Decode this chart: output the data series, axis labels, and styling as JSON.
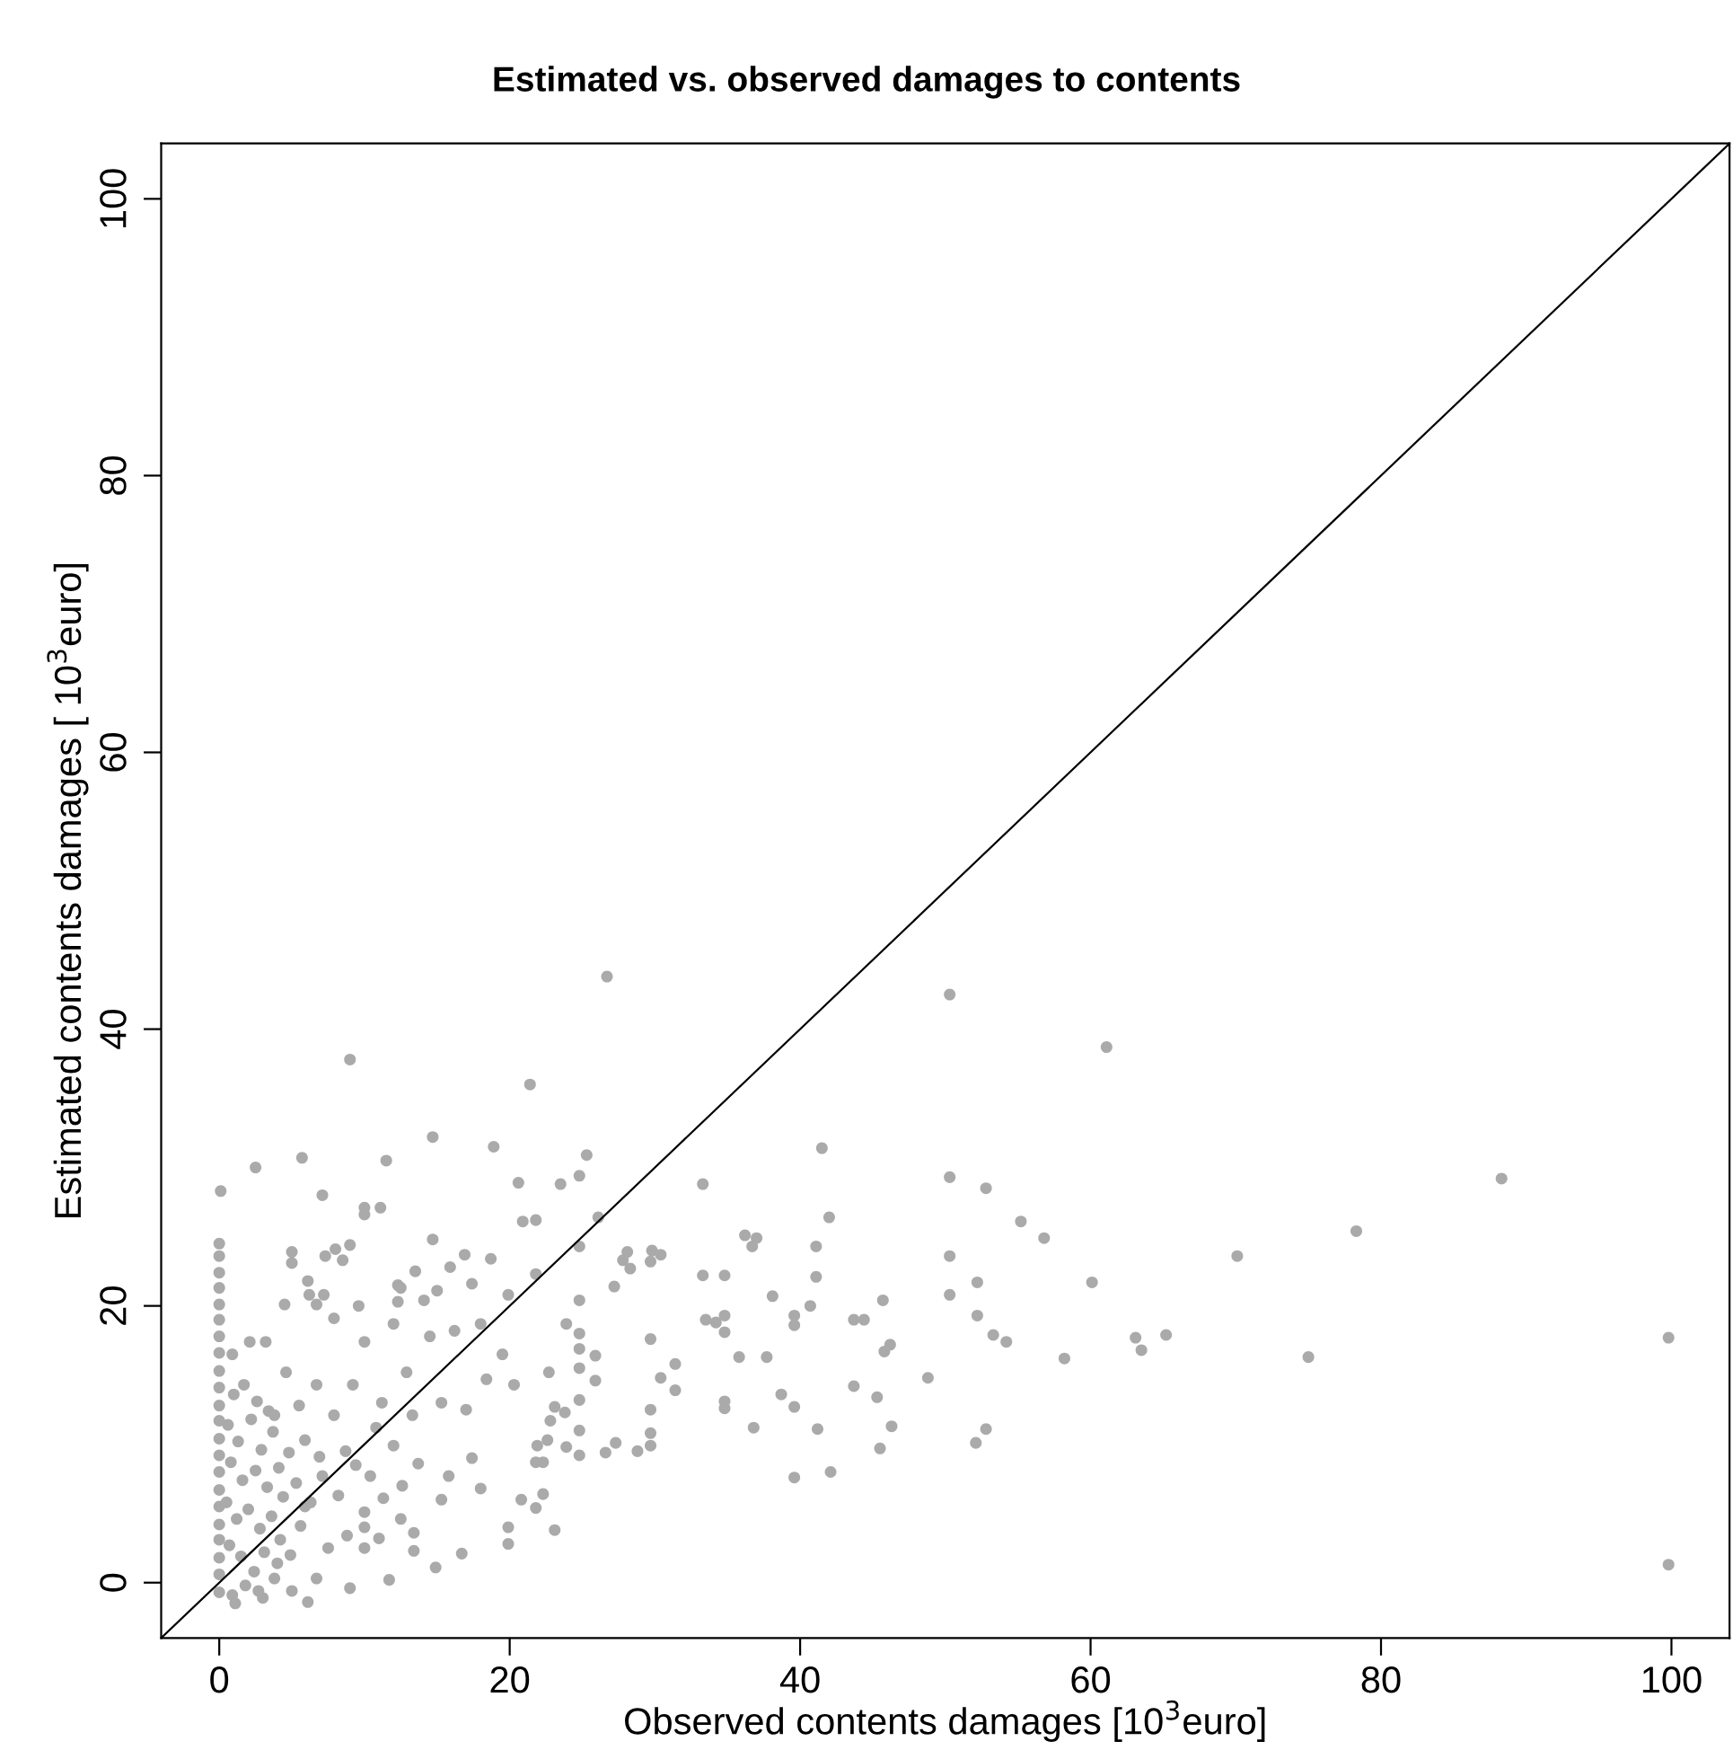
{
  "chart_data": {
    "type": "scatter",
    "title": "Estimated vs. observed damages to contents",
    "xlabel": "Observed contents damages [10$^{3}$euro]",
    "ylabel": "Estimated contents damages [ 10$^{3}$euro]",
    "xlim": [
      -4,
      104
    ],
    "ylim": [
      -4,
      104
    ],
    "xticks": [
      0,
      20,
      40,
      60,
      80,
      100
    ],
    "yticks": [
      0,
      20,
      40,
      60,
      80,
      100
    ],
    "grid": false,
    "marker": "circle",
    "series": [
      {
        "color": "#aaaaaa",
        "x": [
          26.7,
          9.0,
          21.4,
          0.1,
          2.5,
          5.7,
          7.1,
          11.5,
          14.7,
          18.9,
          20.6,
          25.3,
          24.8,
          23.5,
          41.5,
          42.0,
          33.3,
          10.0,
          10.0,
          11.1,
          20.9,
          21.8,
          26.1,
          14.7,
          5.0,
          5.0,
          8.0,
          9.0,
          7.3,
          8.5,
          6.1,
          6.2,
          7.2,
          6.7,
          4.5,
          13.5,
          15.9,
          16.9,
          18.7,
          17.4,
          19.9,
          21.8,
          24.8,
          12.3,
          12.5,
          15.0,
          14.1,
          12.3,
          28.1,
          27.8,
          28.3,
          29.8,
          30.4,
          29.7,
          27.2,
          33.3,
          34.8,
          36.2,
          37.0,
          36.7,
          41.1,
          41.1,
          38.1,
          40.7,
          39.6,
          39.6,
          43.7,
          34.8,
          34.8,
          33.5,
          34.2,
          35.8,
          37.7,
          38.7,
          39.6,
          34.8,
          34.8,
          36.8,
          41.2,
          39.6,
          42.1,
          43.7,
          24.8,
          24.8,
          24.8,
          24.8,
          24.8,
          24.8,
          24.8,
          29.7,
          29.7,
          29.7,
          29.7,
          30.4,
          31.4,
          31.4,
          28.8,
          27.3,
          26.6,
          23.9,
          25.9,
          25.9,
          22.7,
          23.1,
          22.8,
          23.8,
          23.9,
          22.6,
          21.9,
          21.8,
          22.3,
          23.1,
          19.9,
          19.9,
          20.8,
          21.8,
          22.3,
          16.7,
          14.9,
          11.7,
          9.0,
          6.1,
          13.4,
          13.4,
          12.5,
          11.0,
          10.0,
          10.0,
          10.0,
          7.9,
          10.0,
          12.0,
          14.5,
          16.2,
          18.0,
          19.5,
          20.3,
          18.4,
          17.0,
          15.3,
          13.3,
          12.0,
          13.7,
          15.8,
          17.4,
          18.0,
          15.3,
          10.4,
          8.7,
          7.9,
          6.7,
          4.6,
          3.8,
          5.9,
          7.1,
          5.9,
          7.5,
          6.7,
          5.0,
          3.8,
          3.0,
          1.1,
          2.1,
          0.9,
          3.2,
          1.7,
          9.6,
          9.2,
          11.2,
          12.9,
          10.8,
          50.3,
          61.1,
          50.3,
          52.8,
          55.2,
          56.8,
          50.3,
          50.3,
          52.2,
          52.2,
          53.3,
          54.2,
          60.1,
          58.2,
          63.1,
          63.5,
          65.2,
          70.1,
          75.0,
          78.3,
          88.3,
          99.8,
          99.8,
          45.7,
          46.2,
          45.8,
          48.8,
          45.3,
          46.3,
          45.5,
          52.1,
          52.8,
          44.4,
          0,
          0,
          0,
          0,
          0,
          0,
          0,
          0,
          0,
          0,
          0,
          0,
          0,
          0,
          0,
          0,
          0,
          0,
          0,
          0,
          0,
          0,
          0.6,
          1.3,
          2.2,
          2.9,
          3.7,
          4.1,
          0.8,
          1.6,
          2.5,
          3.3,
          4.4,
          0.5,
          1.2,
          2.0,
          2.8,
          3.6,
          4.2,
          0.7,
          1.5,
          2.4,
          3.1,
          0.9,
          1.8,
          2.7,
          4.0,
          1.0,
          2.6,
          3.4,
          4.8,
          5.3,
          5.6,
          4.9,
          5.5,
          6.3,
          6.9,
          8.2,
          8.8,
          9.4,
          11.3,
          12.6
        ],
        "values": [
          43.8,
          37.8,
          36.0,
          28.3,
          30.0,
          30.7,
          28.0,
          30.5,
          32.2,
          31.5,
          28.9,
          30.9,
          29.4,
          28.8,
          31.4,
          26.4,
          28.8,
          27.1,
          26.6,
          27.1,
          26.1,
          26.2,
          26.4,
          24.8,
          23.9,
          23.1,
          24.1,
          24.4,
          23.6,
          23.3,
          21.8,
          20.8,
          20.8,
          20.1,
          20.1,
          22.5,
          22.8,
          23.7,
          23.4,
          21.6,
          20.8,
          22.3,
          24.3,
          21.5,
          21.3,
          21.1,
          20.4,
          20.3,
          23.9,
          23.3,
          22.7,
          24.0,
          23.7,
          23.2,
          21.4,
          22.2,
          22.2,
          25.1,
          24.9,
          24.3,
          24.3,
          22.1,
          20.7,
          20.0,
          19.3,
          18.6,
          19.0,
          19.3,
          18.1,
          19.0,
          18.8,
          16.3,
          16.3,
          13.6,
          12.7,
          13.1,
          12.6,
          11.2,
          11.1,
          7.6,
          8.0,
          14.2,
          20.4,
          18.0,
          16.9,
          15.5,
          13.2,
          11.0,
          9.2,
          17.6,
          12.5,
          10.8,
          9.9,
          14.8,
          15.8,
          13.9,
          9.5,
          10.1,
          9.4,
          18.7,
          16.4,
          14.6,
          15.2,
          12.7,
          11.7,
          12.3,
          9.8,
          10.3,
          9.9,
          8.7,
          8.7,
          3.8,
          4.0,
          2.8,
          6.0,
          5.4,
          6.4,
          2.1,
          1.1,
          0.2,
          -0.4,
          -1.4,
          2.3,
          3.6,
          4.6,
          3.2,
          2.5,
          4.0,
          5.1,
          19.1,
          17.4,
          18.7,
          17.8,
          18.2,
          18.7,
          16.5,
          14.3,
          14.7,
          12.5,
          13.0,
          12.1,
          9.9,
          8.6,
          7.7,
          9.0,
          6.8,
          6.0,
          7.7,
          9.5,
          12.1,
          14.3,
          15.2,
          12.1,
          10.3,
          7.7,
          5.5,
          2.5,
          0.3,
          -0.6,
          0.3,
          -1.1,
          -1.5,
          17.4,
          16.5,
          17.4,
          14.3,
          20.0,
          14.3,
          13.0,
          15.2,
          11.2,
          42.5,
          38.7,
          29.3,
          28.5,
          26.1,
          24.9,
          23.6,
          20.8,
          21.7,
          19.3,
          17.9,
          17.4,
          21.7,
          16.2,
          17.7,
          16.8,
          17.9,
          23.6,
          16.3,
          25.4,
          29.2,
          17.7,
          1.3,
          20.4,
          17.2,
          16.7,
          14.8,
          13.4,
          11.3,
          9.7,
          10.1,
          11.1,
          19.0,
          24.5,
          23.6,
          22.4,
          21.3,
          20.1,
          19.0,
          17.8,
          16.6,
          15.3,
          14.1,
          12.8,
          11.7,
          10.4,
          9.2,
          8.0,
          6.7,
          5.5,
          4.2,
          3.1,
          1.8,
          0.6,
          -0.7,
          11.4,
          10.2,
          11.8,
          9.6,
          10.9,
          8.3,
          8.7,
          7.4,
          8.1,
          6.9,
          6.2,
          5.8,
          4.6,
          5.3,
          3.9,
          4.8,
          3.1,
          2.7,
          1.9,
          0.8,
          2.2,
          -0.9,
          -0.2,
          -0.6,
          1.4,
          13.6,
          13.1,
          12.4,
          9.4,
          7.2,
          4.1,
          2.0,
          12.8,
          5.8,
          9.1,
          6.3,
          3.4,
          8.5,
          6.1,
          7.0
        ]
      },
      {
        "type": "line",
        "color": "#000000",
        "marker": "none",
        "x": [
          -4,
          104
        ],
        "values": [
          -4,
          104
        ]
      }
    ]
  }
}
